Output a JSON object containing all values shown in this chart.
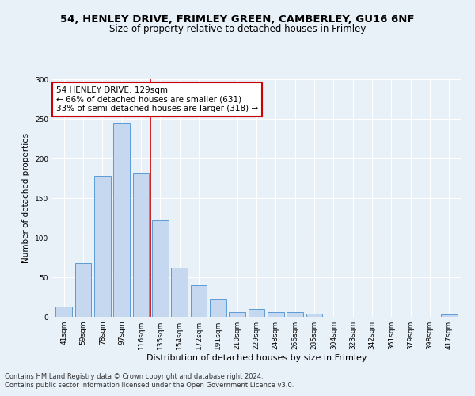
{
  "title1": "54, HENLEY DRIVE, FRIMLEY GREEN, CAMBERLEY, GU16 6NF",
  "title2": "Size of property relative to detached houses in Frimley",
  "xlabel": "Distribution of detached houses by size in Frimley",
  "ylabel": "Number of detached properties",
  "categories": [
    "41sqm",
    "59sqm",
    "78sqm",
    "97sqm",
    "116sqm",
    "135sqm",
    "154sqm",
    "172sqm",
    "191sqm",
    "210sqm",
    "229sqm",
    "248sqm",
    "266sqm",
    "285sqm",
    "304sqm",
    "323sqm",
    "342sqm",
    "361sqm",
    "379sqm",
    "398sqm",
    "417sqm"
  ],
  "values": [
    13,
    68,
    178,
    245,
    181,
    122,
    62,
    40,
    22,
    6,
    10,
    6,
    6,
    4,
    0,
    0,
    0,
    0,
    0,
    0,
    3
  ],
  "bar_color": "#c5d8f0",
  "bar_edge_color": "#5b9bd5",
  "property_line_x": 4.5,
  "property_line_color": "#cc0000",
  "annotation_line1": "54 HENLEY DRIVE: 129sqm",
  "annotation_line2": "← 66% of detached houses are smaller (631)",
  "annotation_line3": "33% of semi-detached houses are larger (318) →",
  "annotation_box_color": "#ffffff",
  "annotation_box_edge": "#cc0000",
  "ylim": [
    0,
    300
  ],
  "yticks": [
    0,
    50,
    100,
    150,
    200,
    250,
    300
  ],
  "footer1": "Contains HM Land Registry data © Crown copyright and database right 2024.",
  "footer2": "Contains public sector information licensed under the Open Government Licence v3.0.",
  "background_color": "#e8f0f8",
  "plot_bg_color": "#e8f0f8",
  "title1_fontsize": 9.5,
  "title2_fontsize": 8.5,
  "xlabel_fontsize": 8,
  "ylabel_fontsize": 7.5,
  "tick_fontsize": 6.5,
  "annotation_fontsize": 7.5,
  "footer_fontsize": 6
}
